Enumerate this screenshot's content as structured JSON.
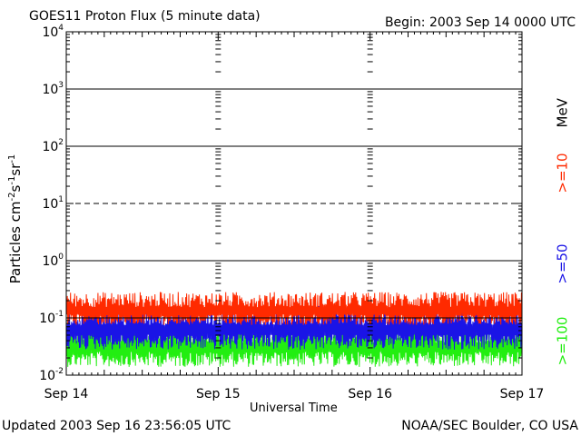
{
  "header": {
    "title": "GOES11 Proton Flux (5 minute data)",
    "begin": "Begin: 2003 Sep 14 0000 UTC"
  },
  "footer": {
    "updated": "Updated 2003 Sep 16 23:56:05 UTC",
    "credit": "NOAA/SEC Boulder, CO USA"
  },
  "legend": {
    "unit": "MeV",
    "items": [
      {
        "label": ">=10",
        "color": "#ff2a00"
      },
      {
        "label": ">=50",
        "color": "#1a14e6"
      },
      {
        "label": ">=100",
        "color": "#22ee11"
      }
    ]
  },
  "chart_data": {
    "type": "line",
    "title": "GOES11 Proton Flux (5 minute data)",
    "xlabel": "Universal Time",
    "ylabel": "Particles cm-2 s-1 sr-1",
    "yscale": "log",
    "ylim": [
      0.01,
      10000
    ],
    "xlim": [
      "2003-09-14 00:00",
      "2003-09-17 00:00"
    ],
    "x_ticks": [
      "Sep 14",
      "Sep 15",
      "Sep 16",
      "Sep 17"
    ],
    "y_ticks": [
      {
        "base": "10",
        "exp": "-2"
      },
      {
        "base": "10",
        "exp": "-1"
      },
      {
        "base": "10",
        "exp": "0"
      },
      {
        "base": "10",
        "exp": "1"
      },
      {
        "base": "10",
        "exp": "2"
      },
      {
        "base": "10",
        "exp": "3"
      },
      {
        "base": "10",
        "exp": "4"
      }
    ],
    "threshold_lines": [
      0.1,
      1,
      10,
      100,
      1000
    ],
    "sampling": "5 minute",
    "series": [
      {
        "name": ">=10 MeV",
        "color": "#ff2a00",
        "approx_range": [
          0.06,
          0.4
        ],
        "typical": 0.13
      },
      {
        "name": ">=50 MeV",
        "color": "#1a14e6",
        "approx_range": [
          0.02,
          0.25
        ],
        "typical": 0.06
      },
      {
        "name": ">=100 MeV",
        "color": "#22ee11",
        "approx_range": [
          0.01,
          0.12
        ],
        "typical": 0.03
      }
    ]
  }
}
